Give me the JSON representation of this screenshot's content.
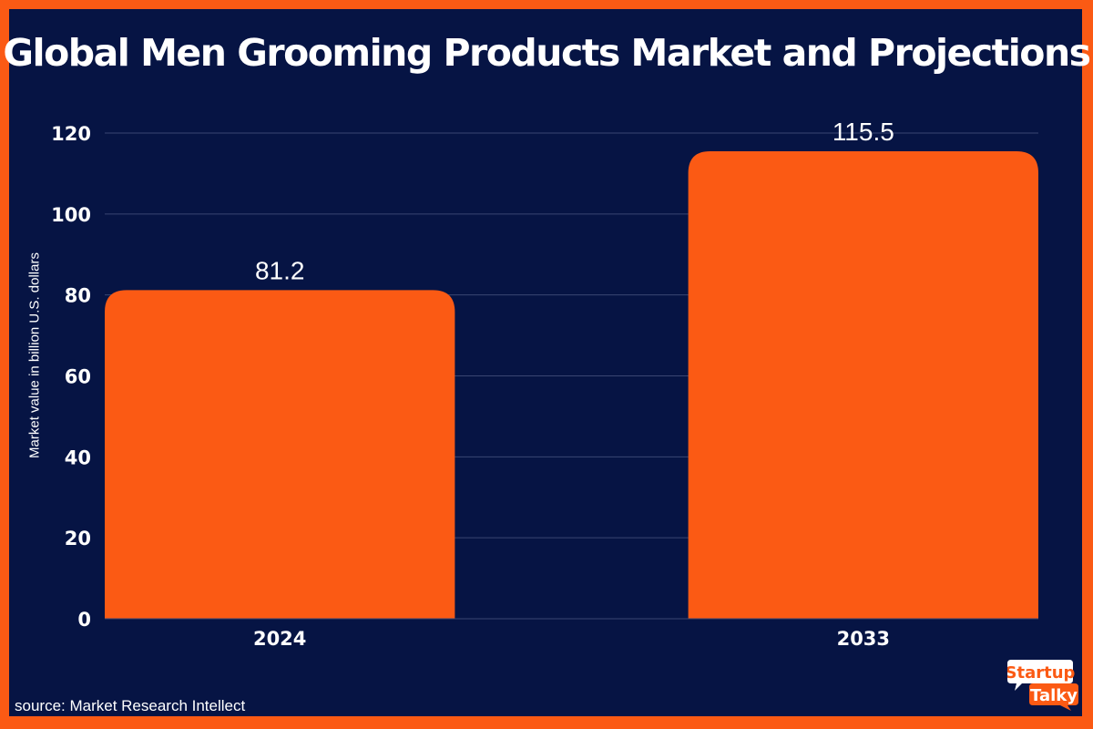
{
  "chart_data": {
    "type": "bar",
    "title": "Global Men Grooming Products Market and Projections",
    "ylabel": "Market value in billion U.S. dollars",
    "xlabel": "",
    "categories": [
      "2024",
      "2033"
    ],
    "values": [
      81.2,
      115.5
    ],
    "data_labels": [
      "81.2",
      "115.5"
    ],
    "ylim": [
      0,
      120
    ],
    "yticks": [
      0,
      20,
      40,
      60,
      80,
      100,
      120
    ],
    "grid": true,
    "bar_color": "#fb5a14",
    "background_color": "#061444"
  },
  "source": "source: Market Research Intellect",
  "logo": {
    "line1": "Startup",
    "line2": "Talky"
  }
}
